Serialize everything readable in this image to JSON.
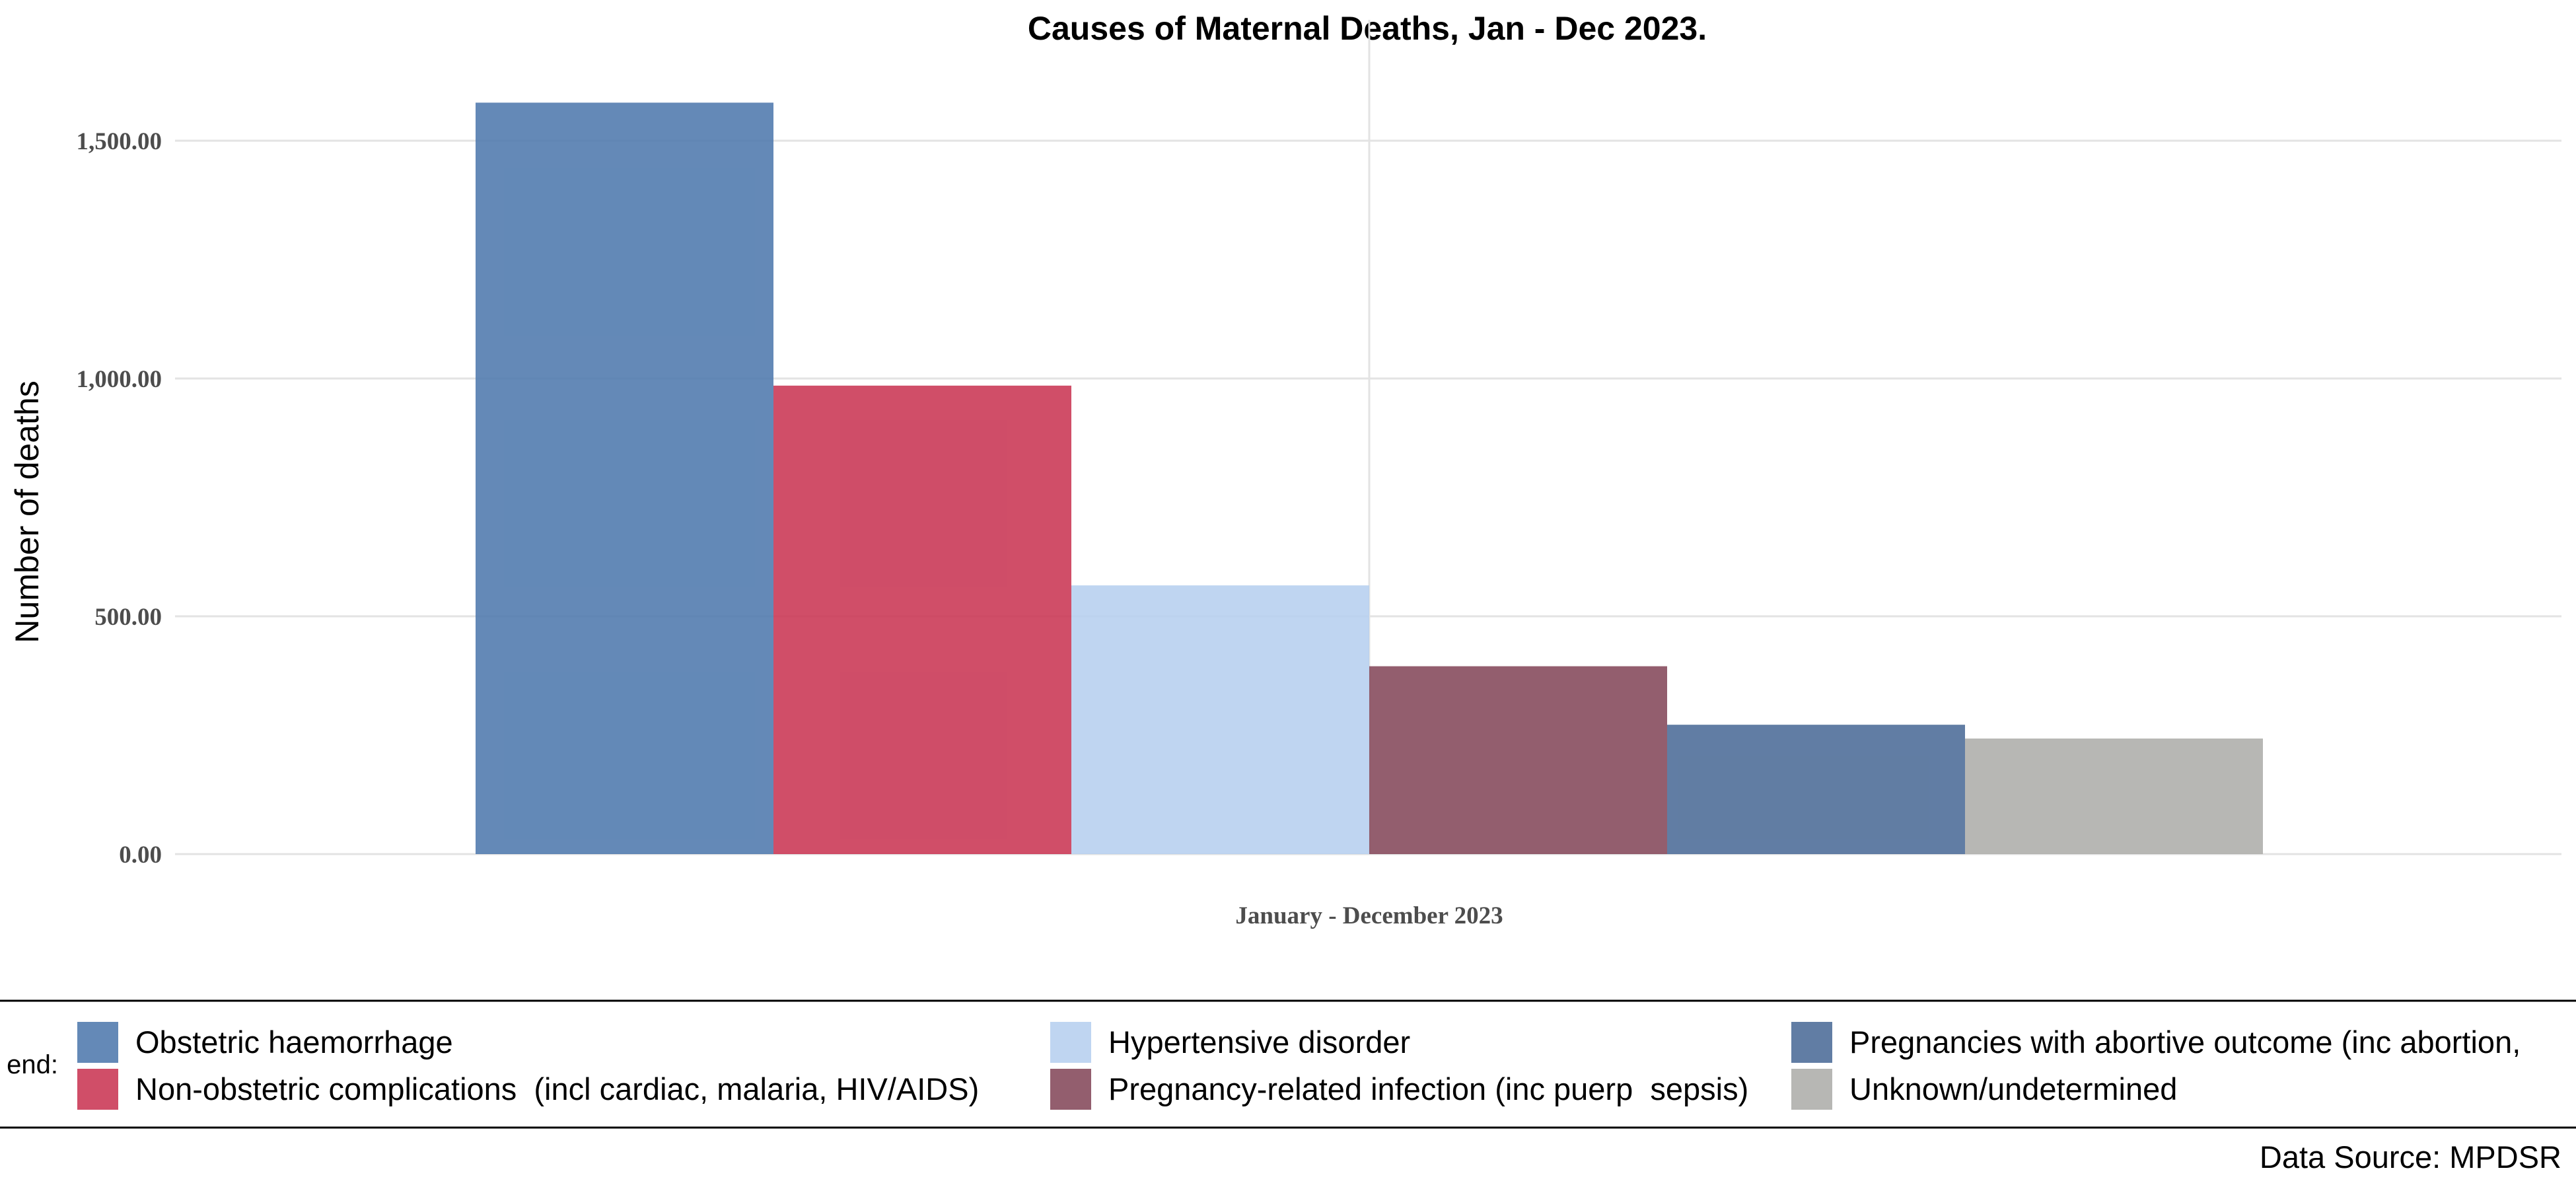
{
  "chart_data": {
    "type": "bar",
    "title": "Causes of Maternal Deaths, Jan - Dec 2023.",
    "xlabel": "",
    "ylabel": "Number of deaths",
    "categories": [
      "January - December 2023"
    ],
    "series": [
      {
        "name": "Obstetric haemorrhage",
        "values": [
          1580
        ],
        "color": "#4e79ad"
      },
      {
        "name": "Non-obstetric complications  (incl cardiac, malaria, HIV/AIDS)",
        "values": [
          985
        ],
        "color": "#c93553"
      },
      {
        "name": "Hypertensive disorder",
        "values": [
          565
        ],
        "color": "#b6cfef"
      },
      {
        "name": "Pregnancy-related infection (inc puerp  sepsis)",
        "values": [
          395
        ],
        "color": "#84485a"
      },
      {
        "name": "Pregnancies with abortive outcome (inc abortion,",
        "values": [
          272
        ],
        "color": "#4b6b97"
      },
      {
        "name": "Unknown/undetermined",
        "values": [
          243
        ],
        "color": "#adadaa"
      }
    ],
    "ylim": [
      0,
      1650
    ],
    "yticks": [
      0,
      500,
      1000,
      1500
    ],
    "ytick_labels": [
      "0.00",
      "500.00",
      "1,000.00",
      "1,500.00"
    ],
    "grid": true,
    "legend_position": "bottom",
    "legend_lead": "end:",
    "source": "Data Source: MPDSR"
  }
}
